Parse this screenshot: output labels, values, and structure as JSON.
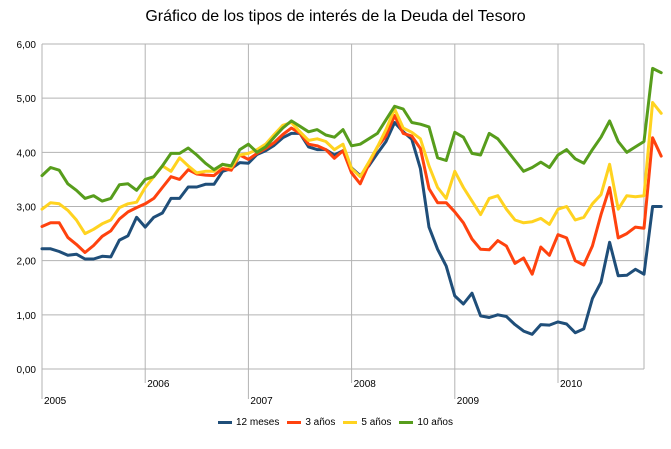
{
  "chart_data": {
    "type": "line",
    "title": "Gráfico de los tipos de interés de la Deuda del Tesoro",
    "xlabel": "",
    "ylabel": "",
    "ylim": [
      0,
      6
    ],
    "yticks": [
      "0,00",
      "1,00",
      "2,00",
      "3,00",
      "4,00",
      "5,00",
      "6,00"
    ],
    "xlim": [
      0,
      70
    ],
    "year_labels": [
      {
        "label": "2005",
        "position": 0
      },
      {
        "label": "2006",
        "position": 12
      },
      {
        "label": "2007",
        "position": 24
      },
      {
        "label": "2008",
        "position": 36
      },
      {
        "label": "2009",
        "position": 48
      },
      {
        "label": "2010",
        "position": 60
      }
    ],
    "grid": true,
    "legend_position": "bottom",
    "series": [
      {
        "name": "12 meses",
        "color": "#1f4e79",
        "values": [
          2.22,
          2.22,
          2.17,
          2.1,
          2.12,
          2.03,
          2.03,
          2.08,
          2.07,
          2.38,
          2.46,
          2.8,
          2.62,
          2.8,
          2.88,
          3.15,
          3.15,
          3.36,
          3.36,
          3.41,
          3.41,
          3.65,
          3.7,
          3.81,
          3.8,
          3.96,
          4.03,
          4.13,
          4.27,
          4.35,
          4.35,
          4.1,
          4.05,
          4.05,
          3.95,
          4.03,
          3.71,
          3.57,
          3.75,
          3.98,
          4.2,
          4.55,
          4.38,
          4.24,
          3.7,
          2.62,
          2.21,
          1.9,
          1.35,
          1.2,
          1.4,
          0.98,
          0.95,
          1.0,
          0.97,
          0.82,
          0.7,
          0.64,
          0.82,
          0.81,
          0.87,
          0.83,
          0.67,
          0.74,
          1.3,
          1.6,
          2.34,
          1.72,
          1.73,
          1.84,
          1.75,
          3.0,
          3.0
        ]
      },
      {
        "name": "3 años",
        "color": "#ff420e",
        "values": [
          2.63,
          2.7,
          2.7,
          2.43,
          2.3,
          2.15,
          2.28,
          2.45,
          2.55,
          2.77,
          2.9,
          2.98,
          3.05,
          3.15,
          3.35,
          3.55,
          3.5,
          3.68,
          3.6,
          3.58,
          3.57,
          3.7,
          3.67,
          3.95,
          3.87,
          3.98,
          4.07,
          4.18,
          4.33,
          4.45,
          4.35,
          4.15,
          4.12,
          4.05,
          3.89,
          4.03,
          3.62,
          3.42,
          3.78,
          4.1,
          4.3,
          4.68,
          4.35,
          4.3,
          4.07,
          3.33,
          3.07,
          3.07,
          2.9,
          2.7,
          2.4,
          2.21,
          2.2,
          2.37,
          2.27,
          1.95,
          2.05,
          1.75,
          2.25,
          2.1,
          2.48,
          2.42,
          2.0,
          1.92,
          2.27,
          2.85,
          3.35,
          2.42,
          2.5,
          2.62,
          2.6,
          4.27,
          3.93
        ]
      },
      {
        "name": "5 años",
        "color": "#ffd320",
        "values": [
          2.95,
          3.07,
          3.05,
          2.93,
          2.75,
          2.5,
          2.58,
          2.68,
          2.75,
          2.98,
          3.05,
          3.08,
          3.35,
          3.55,
          3.75,
          3.65,
          3.9,
          3.75,
          3.62,
          3.65,
          3.65,
          3.78,
          3.72,
          3.95,
          3.98,
          4.05,
          4.15,
          4.33,
          4.5,
          4.55,
          4.38,
          4.22,
          4.25,
          4.2,
          4.05,
          4.15,
          3.7,
          3.55,
          3.82,
          4.1,
          4.42,
          4.8,
          4.45,
          4.37,
          4.25,
          3.75,
          3.35,
          3.15,
          3.65,
          3.35,
          3.1,
          2.85,
          3.15,
          3.2,
          2.95,
          2.75,
          2.7,
          2.72,
          2.78,
          2.67,
          2.95,
          3.0,
          2.75,
          2.8,
          3.05,
          3.22,
          3.78,
          2.95,
          3.2,
          3.18,
          3.2,
          4.92,
          4.72
        ]
      },
      {
        "name": "10 años",
        "color": "#579d1c",
        "values": [
          3.57,
          3.72,
          3.67,
          3.42,
          3.3,
          3.15,
          3.2,
          3.1,
          3.15,
          3.4,
          3.42,
          3.3,
          3.5,
          3.55,
          3.75,
          3.98,
          3.98,
          4.08,
          3.95,
          3.8,
          3.68,
          3.78,
          3.75,
          4.05,
          4.15,
          4.0,
          4.1,
          4.28,
          4.45,
          4.58,
          4.48,
          4.38,
          4.42,
          4.32,
          4.28,
          4.42,
          4.12,
          4.15,
          4.25,
          4.35,
          4.6,
          4.85,
          4.8,
          4.55,
          4.52,
          4.47,
          3.9,
          3.85,
          4.37,
          4.28,
          3.98,
          3.95,
          4.35,
          4.25,
          4.05,
          3.85,
          3.65,
          3.72,
          3.82,
          3.72,
          3.95,
          4.05,
          3.88,
          3.8,
          4.05,
          4.28,
          4.58,
          4.2,
          4.0,
          4.1,
          4.2,
          5.55,
          5.47
        ]
      }
    ]
  }
}
